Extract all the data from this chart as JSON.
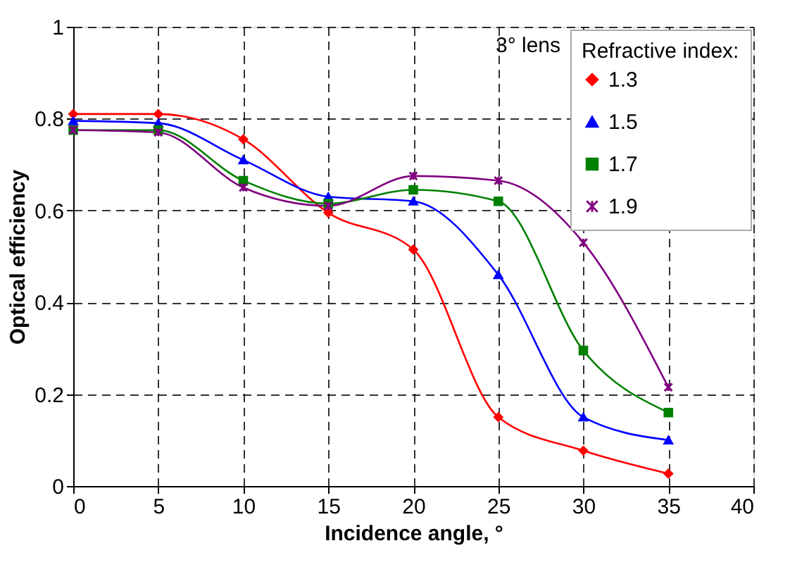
{
  "chart_data": {
    "type": "line",
    "xlabel": "Incidence angle, °",
    "ylabel": "Optical efficiency",
    "legend_title": "Refractive index:",
    "annotations": [
      "3° lens"
    ],
    "x": [
      0,
      5,
      10,
      15,
      20,
      25,
      30,
      35
    ],
    "series": [
      {
        "name": "1.3",
        "color": "#ff0000",
        "marker": "diamond",
        "values": [
          0.81,
          0.81,
          0.755,
          0.595,
          0.515,
          0.15,
          0.077,
          0.027
        ]
      },
      {
        "name": "1.5",
        "color": "#0000ff",
        "marker": "triangle",
        "values": [
          0.795,
          0.79,
          0.71,
          0.63,
          0.62,
          0.46,
          0.15,
          0.1
        ]
      },
      {
        "name": "1.7",
        "color": "#008000",
        "marker": "square",
        "values": [
          0.775,
          0.775,
          0.665,
          0.615,
          0.645,
          0.62,
          0.295,
          0.16
        ]
      },
      {
        "name": "1.9",
        "color": "#800080",
        "marker": "cross",
        "values": [
          0.775,
          0.77,
          0.65,
          0.61,
          0.675,
          0.665,
          0.53,
          0.215
        ]
      }
    ],
    "xlim": [
      0,
      40
    ],
    "xticks": [
      0,
      5,
      10,
      15,
      20,
      25,
      30,
      35,
      40
    ],
    "ylim": [
      0,
      1
    ],
    "yticks": [
      0,
      0.2,
      0.4,
      0.6,
      0.8,
      1
    ],
    "grid": true,
    "legend": "top right",
    "line_style": "solid"
  }
}
